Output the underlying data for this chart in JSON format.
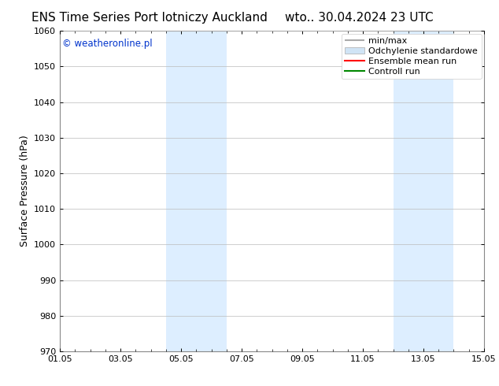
{
  "title_left": "ENS Time Series Port lotniczy Auckland",
  "title_right": "wto.. 30.04.2024 23 UTC",
  "ylabel": "Surface Pressure (hPa)",
  "ylim": [
    970,
    1060
  ],
  "yticks": [
    970,
    980,
    990,
    1000,
    1010,
    1020,
    1030,
    1040,
    1050,
    1060
  ],
  "xtick_labels": [
    "01.05",
    "03.05",
    "05.05",
    "07.05",
    "09.05",
    "11.05",
    "13.05",
    "15.05"
  ],
  "xtick_positions": [
    0,
    2,
    4,
    6,
    8,
    10,
    12,
    14
  ],
  "xlim": [
    0,
    14
  ],
  "shaded_regions": [
    {
      "start": 3.5,
      "end": 5.5,
      "color": "#ddeeff"
    },
    {
      "start": 11.0,
      "end": 13.0,
      "color": "#ddeeff"
    }
  ],
  "watermark_text": "© weatheronline.pl",
  "watermark_color": "#0033cc",
  "legend_items": [
    {
      "label": "min/max",
      "type": "errorbar",
      "color": "#aaaaaa"
    },
    {
      "label": "Odchylenie standardowe",
      "type": "bar",
      "color": "#c8d8ee"
    },
    {
      "label": "Ensemble mean run",
      "type": "line",
      "color": "#ff0000"
    },
    {
      "label": "Controll run",
      "type": "line",
      "color": "#008000"
    }
  ],
  "bg_color": "#ffffff",
  "plot_bg_color": "#ffffff",
  "grid_color": "#bbbbbb",
  "title_fontsize": 11,
  "tick_label_fontsize": 8,
  "ylabel_fontsize": 9,
  "legend_fontsize": 8
}
